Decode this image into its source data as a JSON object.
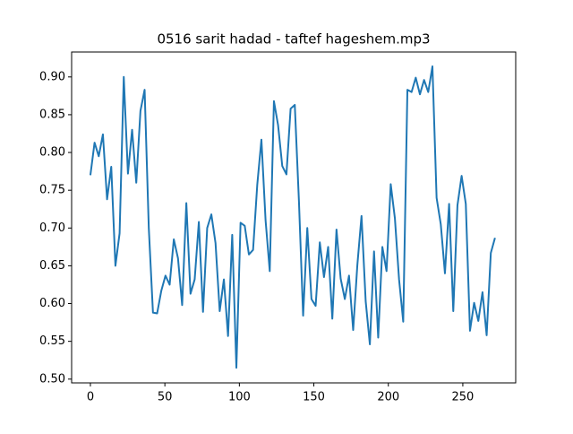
{
  "chart_data": {
    "type": "line",
    "title": "0516 sarit hadad - taftef hageshem.mp3",
    "x": [
      0,
      2.8,
      5.6,
      8.4,
      11.2,
      14,
      16.8,
      19.6,
      22.4,
      25.2,
      28,
      30.8,
      33.6,
      36.4,
      39.2,
      42,
      44.8,
      47.6,
      50.4,
      53.2,
      56,
      58.8,
      61.6,
      64.4,
      67.2,
      70,
      72.8,
      75.6,
      78.4,
      81.2,
      84,
      86.8,
      89.6,
      92.4,
      95.2,
      98,
      100.8,
      103.6,
      106.4,
      109.2,
      112,
      114.8,
      117.6,
      120.4,
      123.2,
      126,
      128.8,
      131.6,
      134.4,
      137.2,
      140,
      142.8,
      145.6,
      148.4,
      151.2,
      154,
      156.8,
      159.6,
      162.4,
      165.2,
      168,
      170.8,
      173.6,
      176.4,
      179.2,
      182,
      184.8,
      187.6,
      190.4,
      193.2,
      196,
      198.8,
      201.6,
      204.4,
      207.2,
      210,
      212.8,
      215.6,
      218.4,
      221.2,
      224,
      226.8,
      229.6,
      232.4,
      235.2,
      238,
      240.8,
      243.6,
      246.4,
      249.2,
      252,
      254.8,
      257.6,
      260.4,
      263.2,
      266,
      268.8,
      271.6
    ],
    "series": [
      {
        "color": "#1f77b4",
        "values": [
          0.77,
          0.813,
          0.795,
          0.824,
          0.738,
          0.781,
          0.65,
          0.693,
          0.9,
          0.772,
          0.83,
          0.76,
          0.855,
          0.883,
          0.7,
          0.588,
          0.587,
          0.617,
          0.637,
          0.625,
          0.685,
          0.66,
          0.598,
          0.733,
          0.613,
          0.632,
          0.708,
          0.589,
          0.7,
          0.718,
          0.68,
          0.59,
          0.632,
          0.557,
          0.691,
          0.515,
          0.707,
          0.703,
          0.665,
          0.671,
          0.757,
          0.817,
          0.71,
          0.643,
          0.868,
          0.836,
          0.782,
          0.771,
          0.858,
          0.863,
          0.735,
          0.584,
          0.7,
          0.606,
          0.597,
          0.681,
          0.635,
          0.675,
          0.58,
          0.698,
          0.633,
          0.606,
          0.637,
          0.565,
          0.651,
          0.716,
          0.603,
          0.546,
          0.669,
          0.555,
          0.675,
          0.643,
          0.758,
          0.713,
          0.632,
          0.576,
          0.883,
          0.88,
          0.899,
          0.877,
          0.896,
          0.88,
          0.914,
          0.74,
          0.705,
          0.64,
          0.732,
          0.59,
          0.73,
          0.769,
          0.732,
          0.564,
          0.601,
          0.577,
          0.615,
          0.558,
          0.667,
          0.687
        ]
      }
    ],
    "xlim": [
      -12.6,
      285.5
    ],
    "xticks": [
      0,
      50,
      100,
      150,
      200,
      250
    ],
    "ylim": [
      0.495,
      0.933
    ],
    "yticks": [
      {
        "value": 0.5,
        "label": "0.50"
      },
      0.55,
      {
        "value": 0.6,
        "label": "0.60"
      },
      0.65,
      {
        "value": 0.7,
        "label": "0.70"
      },
      0.75,
      {
        "value": 0.8,
        "label": "0.80"
      },
      0.85,
      {
        "value": 0.9,
        "label": "0.90"
      }
    ]
  }
}
